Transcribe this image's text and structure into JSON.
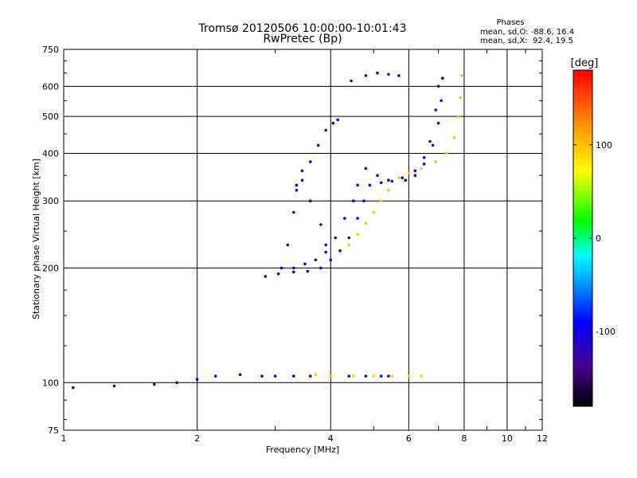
{
  "chart_data": {
    "type": "scatter",
    "title": "Tromsø 20120506 10:00:00-10:01:43",
    "subtitle": "RwPretec (Bp)",
    "phase_box": {
      "title": "Phases",
      "line1": "mean, sd,O: -88.6, 16.4",
      "line2": "mean, sd,X:  92.4, 19.5"
    },
    "xlabel": "Frequency [MHz]",
    "ylabel": "Stationary phase Virtual Height [km]",
    "x_scale": "log",
    "y_scale": "log",
    "xlim": [
      1,
      12
    ],
    "ylim": [
      75,
      750
    ],
    "x_ticks": [
      1,
      2,
      4,
      6,
      8,
      10,
      12
    ],
    "x_tick_labels": [
      "1",
      "2",
      "4",
      "6",
      "8",
      "10",
      "12"
    ],
    "y_ticks": [
      75,
      100,
      200,
      300,
      400,
      500,
      600,
      750
    ],
    "y_tick_labels": [
      "75",
      "100",
      "200",
      "300",
      "400",
      "500",
      "600",
      "750"
    ],
    "grid": true,
    "colorbar": {
      "label": "[deg]",
      "range": [
        -180,
        180
      ],
      "ticks": [
        100,
        0,
        -100
      ],
      "tick_labels": [
        "100",
        "0",
        "-100"
      ],
      "colors": [
        "#000000",
        "#4a0090",
        "#0000ff",
        "#00aaff",
        "#00ffff",
        "#00ff00",
        "#ffff00",
        "#ff8800",
        "#ff0000"
      ]
    },
    "series": [
      {
        "name": "O",
        "mean_phase_deg": -88.6,
        "traces": [
          {
            "phase": -95,
            "points": [
              [
                1.05,
                97
              ],
              [
                1.3,
                98
              ],
              [
                1.6,
                99
              ],
              [
                1.8,
                100
              ],
              [
                2.0,
                102
              ],
              [
                2.2,
                104
              ],
              [
                2.5,
                105
              ],
              [
                2.8,
                104
              ],
              [
                3.0,
                104
              ],
              [
                3.3,
                104
              ],
              [
                3.6,
                104
              ],
              [
                4.0,
                104
              ],
              [
                4.4,
                104
              ],
              [
                4.8,
                104
              ],
              [
                5.2,
                104
              ],
              [
                5.4,
                104
              ]
            ]
          },
          {
            "phase": -95,
            "points": [
              [
                2.85,
                190
              ],
              [
                3.05,
                193
              ],
              [
                3.3,
                195
              ],
              [
                3.55,
                196
              ],
              [
                3.8,
                200
              ],
              [
                4.0,
                210
              ],
              [
                4.2,
                222
              ],
              [
                4.4,
                240
              ],
              [
                4.6,
                270
              ],
              [
                4.75,
                300
              ],
              [
                4.9,
                330
              ],
              [
                5.2,
                335
              ],
              [
                5.5,
                338
              ],
              [
                5.9,
                340
              ],
              [
                6.2,
                350
              ],
              [
                6.5,
                375
              ],
              [
                6.8,
                420
              ],
              [
                7.0,
                480
              ],
              [
                7.1,
                550
              ],
              [
                7.15,
                630
              ]
            ]
          },
          {
            "phase": -100,
            "points": [
              [
                3.3,
                200
              ],
              [
                3.5,
                205
              ],
              [
                3.7,
                210
              ],
              [
                3.9,
                220
              ],
              [
                4.1,
                240
              ],
              [
                4.3,
                270
              ],
              [
                4.5,
                300
              ],
              [
                4.6,
                330
              ],
              [
                4.8,
                365
              ],
              [
                5.1,
                350
              ],
              [
                5.4,
                340
              ],
              [
                5.8,
                345
              ],
              [
                6.2,
                360
              ],
              [
                6.5,
                390
              ],
              [
                6.7,
                430
              ],
              [
                6.9,
                520
              ],
              [
                7.0,
                600
              ]
            ]
          },
          {
            "phase": -100,
            "points": [
              [
                3.1,
                200
              ],
              [
                3.2,
                230
              ],
              [
                3.3,
                280
              ],
              [
                3.35,
                320
              ],
              [
                3.45,
                340
              ],
              [
                3.6,
                300
              ],
              [
                3.8,
                260
              ],
              [
                3.9,
                230
              ]
            ]
          },
          {
            "phase": -100,
            "points": [
              [
                3.35,
                330
              ],
              [
                3.45,
                360
              ],
              [
                3.6,
                380
              ],
              [
                3.75,
                420
              ],
              [
                3.9,
                460
              ],
              [
                4.05,
                480
              ],
              [
                4.15,
                490
              ]
            ]
          },
          {
            "phase": -100,
            "points": [
              [
                4.45,
                620
              ],
              [
                4.8,
                640
              ],
              [
                5.1,
                650
              ],
              [
                5.4,
                645
              ],
              [
                5.7,
                640
              ]
            ]
          }
        ]
      },
      {
        "name": "X",
        "mean_phase_deg": 92.4,
        "traces": [
          {
            "phase": 100,
            "points": [
              [
                4.4,
                230
              ],
              [
                4.6,
                245
              ],
              [
                4.8,
                262
              ],
              [
                5.0,
                280
              ],
              [
                5.2,
                300
              ],
              [
                5.4,
                320
              ],
              [
                5.7,
                345
              ],
              [
                6.0,
                355
              ],
              [
                6.4,
                365
              ],
              [
                6.9,
                380
              ],
              [
                7.3,
                400
              ],
              [
                7.6,
                440
              ],
              [
                7.75,
                500
              ],
              [
                7.85,
                560
              ],
              [
                7.9,
                640
              ]
            ]
          },
          {
            "phase": 95,
            "points": [
              [
                3.7,
                105
              ],
              [
                4.0,
                104
              ],
              [
                4.5,
                104
              ],
              [
                5.0,
                104
              ],
              [
                5.5,
                104
              ],
              [
                6.0,
                104
              ],
              [
                6.4,
                104
              ]
            ]
          }
        ]
      }
    ]
  }
}
